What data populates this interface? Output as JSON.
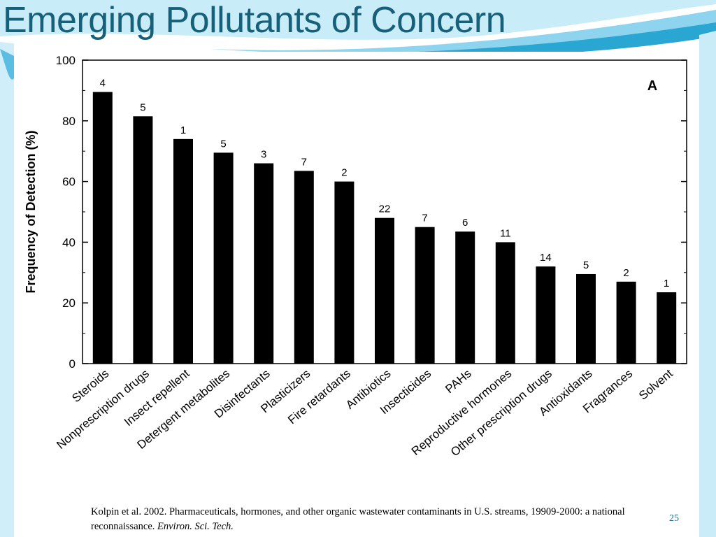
{
  "slide": {
    "title": "Emerging Pollutants of Concern",
    "page_number": "25",
    "colors": {
      "title": "#17607a",
      "wave_dark": "#1d97c4",
      "wave_light": "#8fd4ee",
      "bars": "#000000"
    }
  },
  "citation": {
    "main": "Kolpin et al. 2002. Pharmaceuticals, hormones, and other organic wastewater contaminants in U.S. streams, 19909-2000: a national reconnaissance.",
    "journal": "Environ. Sci. Tech."
  },
  "chart_data": {
    "type": "bar",
    "panel_label": "A",
    "title": "",
    "xlabel": "",
    "ylabel": "Frequency of Detection (%)",
    "ylim": [
      0,
      100
    ],
    "yticks": [
      "0",
      "20",
      "40",
      "60",
      "80",
      "100"
    ],
    "categories": [
      "Steroids",
      "Nonprescription drugs",
      "Insect repellent",
      "Detergent metabolites",
      "Disinfectants",
      "Plasticizers",
      "Fire retardants",
      "Antibiotics",
      "Insecticides",
      "PAHs",
      "Reproductive hormones",
      "Other prescription drugs",
      "Antioxidants",
      "Fragrances",
      "Solvent"
    ],
    "values": [
      89.5,
      81.5,
      74,
      69.5,
      66,
      63.5,
      60,
      48,
      45,
      43.5,
      40,
      32,
      29.5,
      27,
      23.5
    ],
    "bar_labels": [
      "4",
      "5",
      "1",
      "5",
      "3",
      "7",
      "2",
      "22",
      "7",
      "6",
      "11",
      "14",
      "5",
      "2",
      "1"
    ],
    "grid": false,
    "legend": "none"
  }
}
